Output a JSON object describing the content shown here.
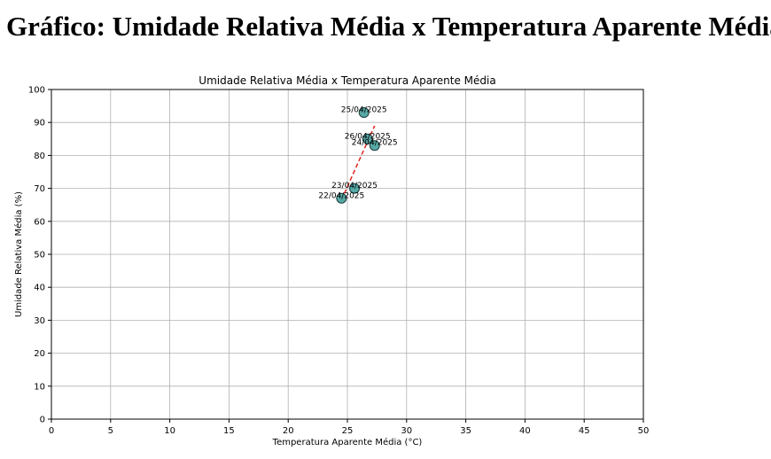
{
  "page": {
    "heading": "Gráfico: Umidade Relativa Média x Temperatura Aparente Média"
  },
  "chart_data": {
    "type": "scatter",
    "title": "Umidade Relativa Média x Temperatura Aparente Média",
    "xlabel": "Temperatura Aparente Média (°C)",
    "ylabel": "Umidade Relativa Média (%)",
    "xlim": [
      0,
      50
    ],
    "ylim": [
      0,
      100
    ],
    "xticks": [
      "0",
      "5",
      "10",
      "15",
      "20",
      "25",
      "30",
      "35",
      "40",
      "45",
      "50"
    ],
    "yticks": [
      "0",
      "10",
      "20",
      "30",
      "40",
      "50",
      "60",
      "70",
      "80",
      "90",
      "100"
    ],
    "grid": true,
    "points": [
      {
        "label": "22/04/2025",
        "x": 24.5,
        "y": 67
      },
      {
        "label": "23/04/2025",
        "x": 25.6,
        "y": 70
      },
      {
        "label": "24/04/2025",
        "x": 27.3,
        "y": 83
      },
      {
        "label": "25/04/2025",
        "x": 26.4,
        "y": 93
      },
      {
        "label": "26/04/2025",
        "x": 26.7,
        "y": 85
      }
    ],
    "trendline": {
      "x": [
        24.5,
        27.3
      ],
      "y": [
        66.5,
        89
      ]
    },
    "colors": {
      "marker_fill": "#3a9a97",
      "marker_edge": "#1c3c3c",
      "trendline": "#e3261f",
      "grid": "#b0b0b0"
    }
  }
}
